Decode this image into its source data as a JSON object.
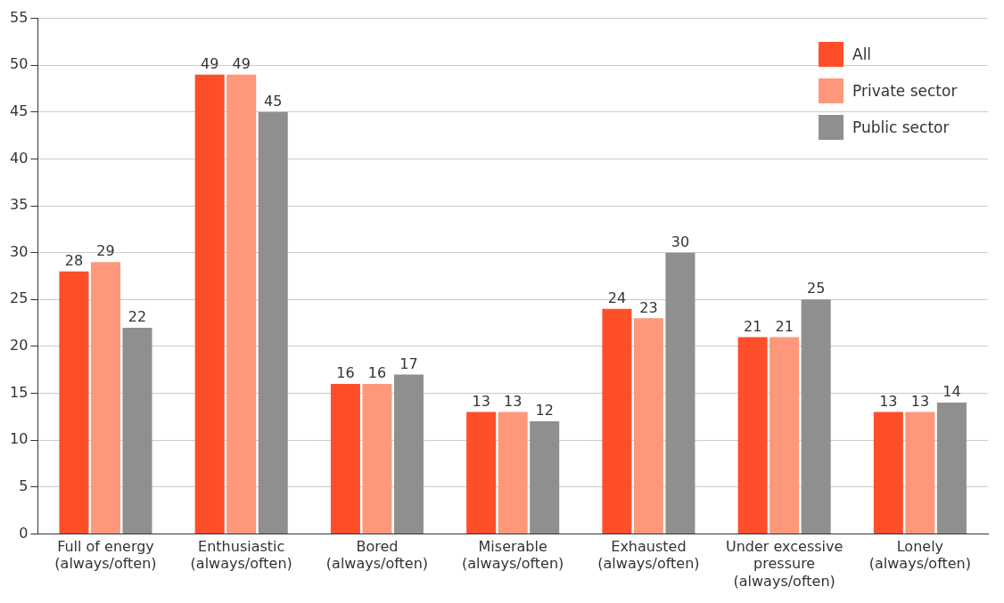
{
  "chart_data": {
    "type": "bar",
    "categories": [
      "Full of energy\n(always/often)",
      "Enthusiastic\n(always/often)",
      "Bored\n(always/often)",
      "Miserable\n(always/often)",
      "Exhausted\n(always/often)",
      "Under excessive\npressure\n(always/often)",
      "Lonely\n(always/often)"
    ],
    "series": [
      {
        "name": "All",
        "color": "#ff4f2a",
        "values": [
          28,
          49,
          16,
          13,
          24,
          21,
          13
        ]
      },
      {
        "name": "Private sector",
        "color": "#ff977a",
        "values": [
          29,
          49,
          16,
          13,
          23,
          21,
          13
        ]
      },
      {
        "name": "Public sector",
        "color": "#8f8f8f",
        "values": [
          22,
          45,
          17,
          12,
          30,
          25,
          14
        ]
      }
    ],
    "ylim": [
      0,
      55
    ],
    "yticks": [
      0,
      5,
      10,
      15,
      20,
      25,
      30,
      35,
      40,
      45,
      50,
      55
    ],
    "grid": "y",
    "legend": "top right",
    "data_labels": true
  }
}
